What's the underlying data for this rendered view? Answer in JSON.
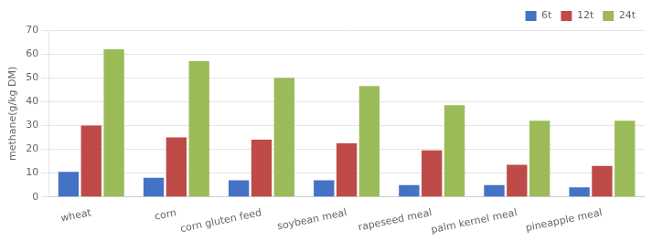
{
  "chart_data": {
    "type": "bar",
    "categories": [
      "wheat",
      "corn",
      "corn gluten feed",
      "soybean meal",
      "rapeseed meal",
      "palm kernel meal",
      "pineapple meal"
    ],
    "series": [
      {
        "name": "6t",
        "color": "#4472C4",
        "values": [
          10.5,
          8.0,
          7.0,
          7.0,
          5.0,
          5.0,
          4.0
        ]
      },
      {
        "name": "12t",
        "color": "#BE4B48",
        "values": [
          30.0,
          25.0,
          24.0,
          22.5,
          19.5,
          13.5,
          13.0
        ]
      },
      {
        "name": "24t",
        "color": "#9BBB59",
        "values": [
          62.0,
          57.0,
          50.0,
          46.5,
          38.5,
          32.0,
          32.0
        ]
      }
    ],
    "ylabel": "methane(g/kg DM)",
    "ylim": [
      0,
      70
    ],
    "yticks": [
      0,
      10,
      20,
      30,
      40,
      50,
      60,
      70
    ],
    "grid": true,
    "legend": "upper right"
  }
}
